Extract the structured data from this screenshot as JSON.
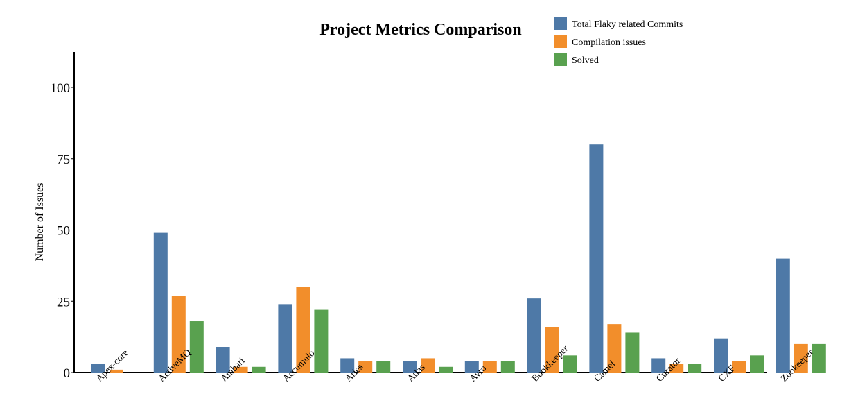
{
  "chart_data": {
    "type": "bar",
    "title": "Project Metrics Comparison",
    "xlabel": "",
    "ylabel": "Number of Issues",
    "ylim": [
      0,
      110
    ],
    "yticks": [
      0,
      25,
      50,
      75,
      100
    ],
    "grid": false,
    "legend_position": "top-right",
    "categories": [
      "Apex-core",
      "ActiveMQ",
      "Ambari",
      "Accumulo",
      "Aries",
      "Atlas",
      "Avro",
      "Bookkeeper",
      "Camel",
      "Curator",
      "CXF",
      "Zookeeper"
    ],
    "series": [
      {
        "name": "Total Flaky related Commits",
        "color": "#4e79a7",
        "values": [
          3,
          49,
          9,
          24,
          5,
          4,
          4,
          26,
          80,
          5,
          12,
          40
        ]
      },
      {
        "name": "Compilation issues",
        "color": "#f28e2b",
        "values": [
          1,
          27,
          2,
          30,
          4,
          5,
          4,
          16,
          17,
          3,
          4,
          10
        ]
      },
      {
        "name": "Solved",
        "color": "#59a14f",
        "values": [
          0,
          18,
          2,
          22,
          4,
          2,
          4,
          6,
          14,
          3,
          6,
          10
        ]
      }
    ]
  }
}
